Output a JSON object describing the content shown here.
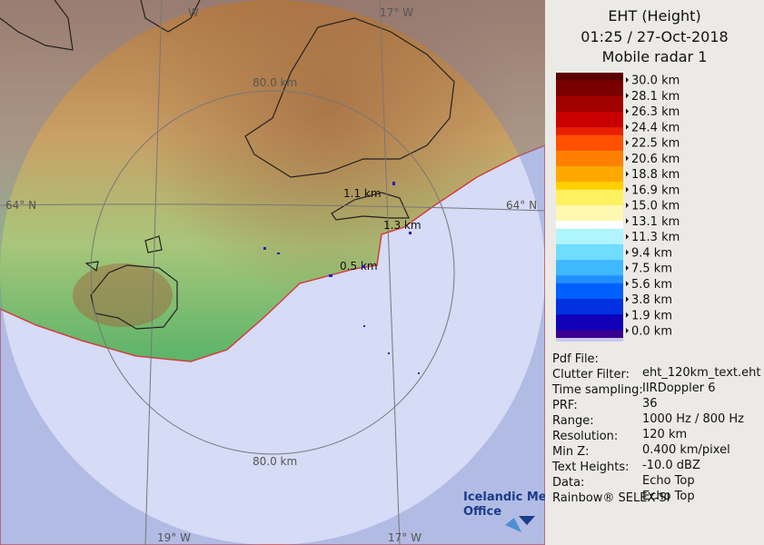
{
  "map": {
    "labels": {
      "top_left": "W",
      "top_right": "17° W",
      "ring_top": "80.0 km",
      "ring_bottom": "80.0 km",
      "left": "64° N",
      "right": "64° N",
      "bottom_left": "19° W",
      "bottom_right": "17° W"
    },
    "heights": [
      "1.1 km",
      "1.3 km",
      "0.5 km"
    ],
    "logo": [
      "Icelandic Met",
      "Office"
    ]
  },
  "panel": {
    "title": [
      "EHT (Height)",
      "01:25 / 27-Oct-2018",
      "Mobile radar 1"
    ],
    "legend": [
      "30.0 km",
      "28.1 km",
      "26.3 km",
      "24.4 km",
      "22.5 km",
      "20.6 km",
      "18.8 km",
      "16.9 km",
      "15.0 km",
      "13.1 km",
      "11.3 km",
      "9.4 km",
      "7.5 km",
      "5.6 km",
      "3.8 km",
      "1.9 km",
      "0.0 km"
    ],
    "info": [
      {
        "key": "Pdf File:",
        "value": "eht_120km_text.eht"
      },
      {
        "key": "Clutter Filter:",
        "value": "IIRDoppler 6"
      },
      {
        "key": "Time sampling:",
        "value": "36"
      },
      {
        "key": "PRF:",
        "value": "1000 Hz / 800 Hz"
      },
      {
        "key": "Range:",
        "value": "120 km"
      },
      {
        "key": "Resolution:",
        "value": "0.400 km/pixel"
      },
      {
        "key": "Min Z:",
        "value": "-10.0 dBZ"
      },
      {
        "key": "Text Heights:",
        "value": "Echo Top"
      },
      {
        "key": "Data:",
        "value": "Echo Top"
      }
    ],
    "footer": "Rainbow® SELEX-SI"
  }
}
